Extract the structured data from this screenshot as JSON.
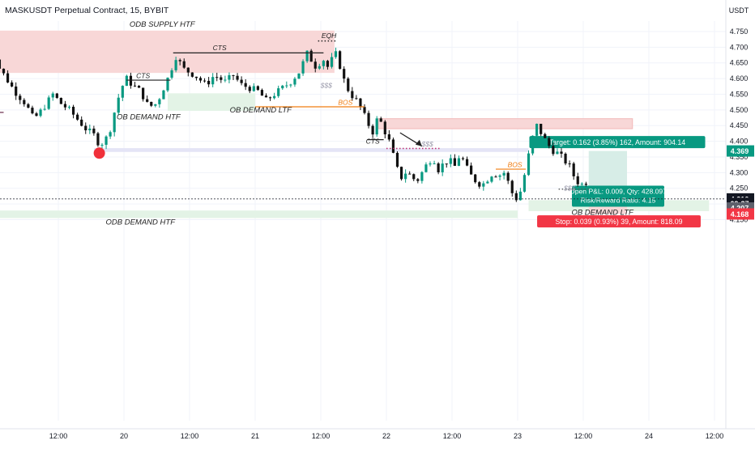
{
  "header": {
    "symbol_title": "MASKUSDT Perpetual Contract, 15, BYBIT"
  },
  "colors": {
    "up": "#089981",
    "down": "#111111",
    "supply_zone": "#f8d7d7",
    "demand_zone": "#e3f3e6",
    "liquidity_zone": "#e4e4f6",
    "target_fill": "#d5ece6",
    "stop_fill": "#f6d6d6",
    "bos_line": "#f07d12",
    "swing_line": "#222222",
    "highlight_dot": "#f0303a",
    "price_tag_green": "#089981",
    "price_tag_red": "#f23645",
    "price_tag_gray": "#5d606b",
    "price_tag_black": "#131722"
  },
  "chart_data": {
    "type": "candlestick",
    "title": "MASKUSDT Perpetual Contract, 15, BYBIT",
    "price_axis": {
      "unit": "USDT",
      "range": [
        4.135,
        4.8
      ],
      "ticks": [
        "4.750",
        "4.700",
        "4.650",
        "4.600",
        "4.550",
        "4.500",
        "4.450",
        "4.400",
        "4.350",
        "4.300",
        "4.250",
        "4.200",
        "4.150"
      ]
    },
    "time_axis": {
      "range_hours": [
        -13,
        171
      ],
      "ticks": [
        {
          "t": 0,
          "label": "12:00"
        },
        {
          "t": 12,
          "label": "20"
        },
        {
          "t": 24,
          "label": "12:00"
        },
        {
          "t": 36,
          "label": "21"
        },
        {
          "t": 48,
          "label": "12:00"
        },
        {
          "t": 60,
          "label": "22"
        },
        {
          "t": 72,
          "label": "12:00"
        },
        {
          "t": 84,
          "label": "23"
        },
        {
          "t": 96,
          "label": "12:00"
        },
        {
          "t": 108,
          "label": "24"
        },
        {
          "t": 120,
          "label": "12:00"
        }
      ]
    },
    "price_path": [
      [
        -13,
        4.73
      ],
      [
        -12,
        4.7
      ],
      [
        -11,
        4.64
      ],
      [
        -9.5,
        4.6
      ],
      [
        -8,
        4.56
      ],
      [
        -6,
        4.52
      ],
      [
        -4.5,
        4.47
      ],
      [
        -3,
        4.5
      ],
      [
        -1,
        4.55
      ],
      [
        0.5,
        4.52
      ],
      [
        2,
        4.5
      ],
      [
        3.5,
        4.47
      ],
      [
        5,
        4.44
      ],
      [
        6.5,
        4.42
      ],
      [
        7.5,
        4.39
      ],
      [
        8.5,
        4.4
      ],
      [
        9.5,
        4.44
      ],
      [
        10.5,
        4.51
      ],
      [
        11.5,
        4.57
      ],
      [
        12.5,
        4.6
      ],
      [
        13.5,
        4.58
      ],
      [
        15,
        4.56
      ],
      [
        16.5,
        4.51
      ],
      [
        18,
        4.52
      ],
      [
        19,
        4.56
      ],
      [
        20,
        4.6
      ],
      [
        21.5,
        4.67
      ],
      [
        23,
        4.63
      ],
      [
        25,
        4.61
      ],
      [
        27,
        4.58
      ],
      [
        28.5,
        4.61
      ],
      [
        30.5,
        4.59
      ],
      [
        32,
        4.61
      ],
      [
        33.5,
        4.58
      ],
      [
        35,
        4.57
      ],
      [
        36.5,
        4.56
      ],
      [
        38,
        4.53
      ],
      [
        39.5,
        4.55
      ],
      [
        41,
        4.57
      ],
      [
        42.5,
        4.59
      ],
      [
        44,
        4.62
      ],
      [
        45.5,
        4.68
      ],
      [
        47,
        4.64
      ],
      [
        48.5,
        4.66
      ],
      [
        49.5,
        4.63
      ],
      [
        50.5,
        4.69
      ],
      [
        51.5,
        4.64
      ],
      [
        52.5,
        4.58
      ],
      [
        53.5,
        4.55
      ],
      [
        54.5,
        4.53
      ],
      [
        55.5,
        4.5
      ],
      [
        56.5,
        4.46
      ],
      [
        57.5,
        4.43
      ],
      [
        58.5,
        4.48
      ],
      [
        59.5,
        4.44
      ],
      [
        60.5,
        4.4
      ],
      [
        61.5,
        4.34
      ],
      [
        62.5,
        4.28
      ],
      [
        63.5,
        4.3
      ],
      [
        64.5,
        4.29
      ],
      [
        65.5,
        4.27
      ],
      [
        66.5,
        4.3
      ],
      [
        67.5,
        4.33
      ],
      [
        68.5,
        4.35
      ],
      [
        69.5,
        4.31
      ],
      [
        70.5,
        4.33
      ],
      [
        71.5,
        4.34
      ],
      [
        72.5,
        4.32
      ],
      [
        73.5,
        4.36
      ],
      [
        74.5,
        4.32
      ],
      [
        75.5,
        4.29
      ],
      [
        76.5,
        4.27
      ],
      [
        77.5,
        4.26
      ],
      [
        78.5,
        4.28
      ],
      [
        79.5,
        4.3
      ],
      [
        80.5,
        4.29
      ],
      [
        81.5,
        4.3
      ],
      [
        82.5,
        4.26
      ],
      [
        83.5,
        4.21
      ],
      [
        84.5,
        4.24
      ],
      [
        85.5,
        4.31
      ],
      [
        86.5,
        4.4
      ],
      [
        87.5,
        4.45
      ],
      [
        88.5,
        4.42
      ],
      [
        89.5,
        4.39
      ],
      [
        90.5,
        4.37
      ],
      [
        91.5,
        4.36
      ],
      [
        92.5,
        4.34
      ],
      [
        93.5,
        4.32
      ],
      [
        94.5,
        4.28
      ],
      [
        95.5,
        4.26
      ],
      [
        96.5,
        4.27
      ],
      [
        97.2,
        4.21
      ]
    ],
    "annotations": [
      {
        "text": "ODB SUPPLY HTF",
        "t": 19,
        "p": 4.765,
        "size": 9.5
      },
      {
        "text": "EQH",
        "t": 49.5,
        "p": 4.729,
        "size": 8.5
      },
      {
        "text": "CTS",
        "t": 29.5,
        "p": 4.69,
        "size": 8.5
      },
      {
        "text": "CTS",
        "t": 15.5,
        "p": 4.602,
        "size": 8.5
      },
      {
        "text": "$$$",
        "t": 49,
        "p": 4.57,
        "size": 8.5,
        "color": "#9999aa"
      },
      {
        "text": "BOS",
        "t": 52.5,
        "p": 4.517,
        "size": 8.5,
        "color": "#f07d12"
      },
      {
        "text": "OB DEMAND LTF",
        "t": 37,
        "p": 4.492,
        "size": 9.5
      },
      {
        "text": "OB DEMAND HTF",
        "t": 16.5,
        "p": 4.47,
        "size": 9.5
      },
      {
        "text": "CTS",
        "t": 57.5,
        "p": 4.393,
        "size": 8.5
      },
      {
        "text": "$$$",
        "t": 67.5,
        "p": 4.384,
        "size": 8.5,
        "color": "#9999aa"
      },
      {
        "text": "BOS",
        "t": 83.5,
        "p": 4.318,
        "size": 8.5,
        "color": "#f07d12"
      },
      {
        "text": "$$$",
        "t": 93.5,
        "p": 4.243,
        "size": 8.5,
        "color": "#9999aa"
      },
      {
        "text": "OB DEMAND LTF",
        "t": 99.5,
        "p": 4.165,
        "size": 9.5
      },
      {
        "text": "ODB DEMAND HTF",
        "t": 15,
        "p": 4.134,
        "size": 9.5
      }
    ],
    "zones": [
      {
        "name": "odb-supply-htf",
        "t0": -13,
        "t1": 50.5,
        "p0": 4.618,
        "p1": 4.753,
        "color": "#f8d7d7"
      },
      {
        "name": "ob-demand-htf-upper",
        "t0": 20,
        "t1": 36,
        "p0": 4.497,
        "p1": 4.553,
        "color": "#e3f3e6"
      },
      {
        "name": "supply-zone-right",
        "t0": 58.5,
        "t1": 105,
        "p0": 4.44,
        "p1": 4.472,
        "color": "#f8d7d7"
      },
      {
        "name": "liquidity-line-zone",
        "t0": 6.5,
        "t1": 86,
        "p0": 4.366,
        "p1": 4.378,
        "color": "#e4e4f6"
      },
      {
        "name": "ob-demand-ltf-zone",
        "t0": 86,
        "t1": 119,
        "p0": 4.177,
        "p1": 4.212,
        "color": "#e3f3e6"
      },
      {
        "name": "odb-demand-htf-zone",
        "t0": -13,
        "t1": 84,
        "p0": 4.155,
        "p1": 4.179,
        "color": "#e3f3e6"
      }
    ],
    "lines": [
      {
        "name": "cts-upper",
        "t0": 21,
        "t1": 48.5,
        "p": 4.682,
        "color": "#222222"
      },
      {
        "name": "cts-lower",
        "t0": 12.5,
        "t1": 20.5,
        "p": 4.595,
        "color": "#222222"
      },
      {
        "name": "eqh",
        "t0": 47.5,
        "t1": 51,
        "p": 4.72,
        "color": "#222222",
        "dotted": true
      },
      {
        "name": "bos-upper",
        "t0": 36,
        "t1": 56,
        "p": 4.51,
        "color": "#f07d12"
      },
      {
        "name": "cts-mid",
        "t0": 56.5,
        "t1": 59.5,
        "p": 4.405,
        "color": "#222222"
      },
      {
        "name": "bos-lower",
        "t0": 80,
        "t1": 85.5,
        "p": 4.311,
        "color": "#f07d12"
      },
      {
        "name": "sss-lower",
        "t0": 91.5,
        "t1": 97,
        "p": 4.247,
        "color": "#555555",
        "dotted": true
      },
      {
        "name": "sss-mid",
        "t0": 60,
        "t1": 70,
        "p": 4.377,
        "color": "#c03070",
        "dotted": true
      },
      {
        "name": "left-level",
        "t0": -13,
        "t1": -10,
        "p": 4.492,
        "color": "#6a2a4a"
      }
    ],
    "position": {
      "side": "long",
      "t0": 97,
      "t1": 104,
      "entry": 4.207,
      "target": 4.369,
      "stop": 4.168,
      "target_label": "Target: 0.162 (3.85%) 162, Amount: 904.14",
      "stop_label": "Stop: 0.039 (0.93%) 39, Amount: 818.09",
      "pnl_label_1": "Open P&L: 0.009, Qty: 428.097",
      "pnl_label_2": "Risk/Reward Ratio: 4.15"
    },
    "price_tags": [
      {
        "name": "target-price-tag",
        "value": "4.369",
        "p": 4.369,
        "color": "#089981"
      },
      {
        "name": "last-price-tag",
        "value": "4.216",
        "p": 4.216,
        "color": "#131722"
      },
      {
        "name": "countdown-tag",
        "value": "09:37",
        "p": 4.202,
        "color": "#131722"
      },
      {
        "name": "entry-price-tag",
        "value": "4.207",
        "p": 4.187,
        "color": "#5d606b"
      },
      {
        "name": "stop-price-tag",
        "value": "4.168",
        "p": 4.168,
        "color": "#f23645"
      }
    ],
    "last_price": 4.216,
    "highlight_low": {
      "t": 7.5,
      "p": 4.375
    }
  }
}
